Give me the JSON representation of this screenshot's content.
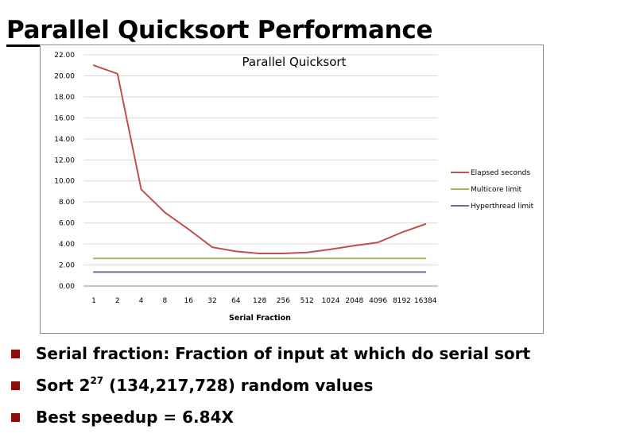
{
  "slide": {
    "title": "Parallel Quicksort Performance"
  },
  "bullets": [
    {
      "text": "Serial fraction: Fraction of input at which do serial sort"
    },
    {
      "pre": "Sort 2",
      "sup": "27",
      "post": " (134,217,728) random values"
    },
    {
      "text": "Best speedup = 6.84X"
    }
  ],
  "chart_data": {
    "type": "line",
    "title": "Parallel Quicksort",
    "xlabel": "Serial Fraction",
    "ylabel": "",
    "categories": [
      "1",
      "2",
      "4",
      "8",
      "16",
      "32",
      "64",
      "128",
      "256",
      "512",
      "1024",
      "2048",
      "4096",
      "8192",
      "16384"
    ],
    "ylim": [
      0,
      22
    ],
    "yticks": [
      "0.00",
      "2.00",
      "4.00",
      "6.00",
      "8.00",
      "10.00",
      "12.00",
      "14.00",
      "16.00",
      "18.00",
      "20.00",
      "22.00"
    ],
    "grid": true,
    "legend_position": "right",
    "series": [
      {
        "name": "Elapsed seconds",
        "color": "#c0504d",
        "values": [
          21.0,
          20.2,
          9.2,
          7.0,
          5.4,
          3.7,
          3.3,
          3.1,
          3.1,
          3.2,
          3.5,
          3.85,
          4.15,
          5.1,
          5.9
        ]
      },
      {
        "name": "Multicore limit",
        "color": "#9bbb59",
        "values": [
          2.63,
          2.63,
          2.63,
          2.63,
          2.63,
          2.63,
          2.63,
          2.63,
          2.63,
          2.63,
          2.63,
          2.63,
          2.63,
          2.63,
          2.63
        ]
      },
      {
        "name": "Hyperthread limit",
        "color": "#8064a2",
        "values": [
          1.33,
          1.33,
          1.33,
          1.33,
          1.33,
          1.33,
          1.33,
          1.33,
          1.33,
          1.33,
          1.33,
          1.33,
          1.33,
          1.33,
          1.33
        ]
      }
    ]
  }
}
